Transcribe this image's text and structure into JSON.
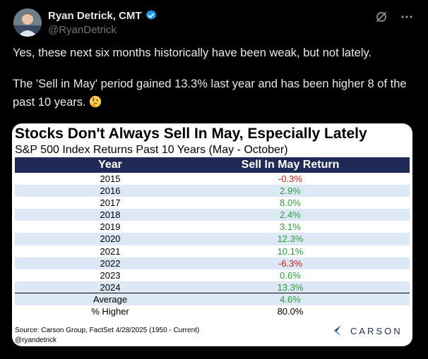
{
  "author": {
    "name": "Ryan Detrick, CMT",
    "handle": "@RyanDetrick"
  },
  "icons": {
    "verified": "verified-badge-icon",
    "grok": "grok-icon",
    "more": "more-options-icon",
    "emoji": "thinking-face-emoji"
  },
  "tweet": {
    "line1": "Yes, these next six months historically have been weak, but not lately.",
    "line2": "The 'Sell in May' period gained 13.3% last year and has been higher 8 of the past 10 years."
  },
  "media": {
    "title": "Stocks Don't Always Sell In May, Especially Lately",
    "subtitle": "S&P 500 Index Returns Past 10 Years (May - October)",
    "headers": {
      "year": "Year",
      "return": "Sell In May Return"
    },
    "rows": [
      {
        "year": "2015",
        "ret": "-0.3%",
        "sign": "neg"
      },
      {
        "year": "2016",
        "ret": "2.9%",
        "sign": "pos"
      },
      {
        "year": "2017",
        "ret": "8.0%",
        "sign": "pos"
      },
      {
        "year": "2018",
        "ret": "2.4%",
        "sign": "pos"
      },
      {
        "year": "2019",
        "ret": "3.1%",
        "sign": "pos"
      },
      {
        "year": "2020",
        "ret": "12.3%",
        "sign": "pos"
      },
      {
        "year": "2021",
        "ret": "10.1%",
        "sign": "pos"
      },
      {
        "year": "2022",
        "ret": "-6.3%",
        "sign": "neg"
      },
      {
        "year": "2023",
        "ret": "0.6%",
        "sign": "pos"
      },
      {
        "year": "2024",
        "ret": "13.3%",
        "sign": "pos"
      }
    ],
    "summary": [
      {
        "label": "Average",
        "value": "4.6%",
        "sign": "pos"
      },
      {
        "label": "% Higher",
        "value": "80.0%",
        "sign": "neutral"
      }
    ],
    "source": "Source: Carson Group, FactSet 4/28/2025 (1950 - Current)",
    "credit": "@ryandetrick",
    "logo_text": "CARSON"
  },
  "colors": {
    "background": "#000000",
    "header_bar": "#1f2a56",
    "alt_row": "#dde8f6",
    "positive": "#2e9b3a",
    "negative": "#d01919",
    "verified": "#1d9bf0"
  }
}
